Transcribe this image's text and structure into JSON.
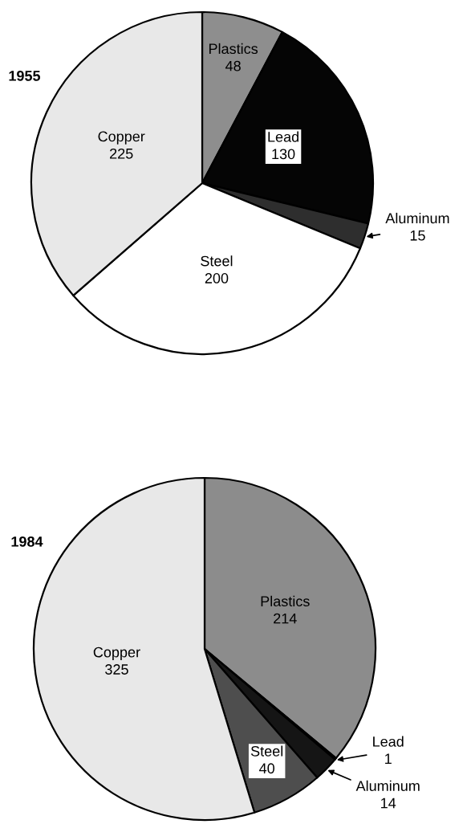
{
  "chart_data": [
    {
      "type": "pie",
      "title": "1955",
      "categories": [
        "Plastics",
        "Lead",
        "Aluminum",
        "Steel",
        "Copper"
      ],
      "values": [
        48,
        130,
        15,
        200,
        225
      ],
      "colors": [
        "#8e8e8e",
        "#050505",
        "#2e2e2e",
        "#ffffff",
        "#e8e8e8"
      ],
      "data_labels": true
    },
    {
      "type": "pie",
      "title": "1984",
      "categories": [
        "Plastics",
        "Lead",
        "Aluminum",
        "Steel",
        "Copper"
      ],
      "values": [
        214,
        1,
        14,
        40,
        325
      ],
      "colors": [
        "#8c8c8c",
        "#050505",
        "#151515",
        "#4e4e4e",
        "#e8e8e8"
      ],
      "data_labels": true
    }
  ]
}
